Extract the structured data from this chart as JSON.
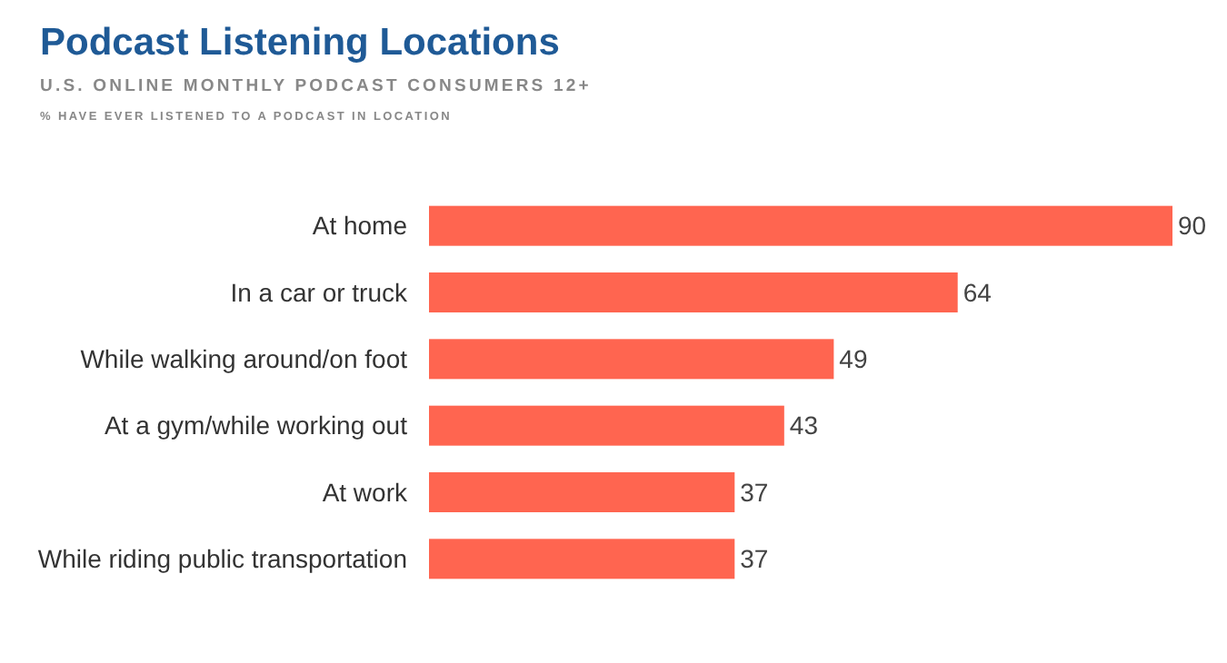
{
  "chart_data": {
    "type": "bar",
    "orientation": "horizontal",
    "title": "Podcast Listening Locations",
    "subtitle": "U.S. ONLINE MONTHLY PODCAST CONSUMERS 12+",
    "annotations": [
      "% HAVE EVER LISTENED TO A PODCAST IN LOCATION"
    ],
    "categories": [
      "At home",
      "In a car or truck",
      "While walking around/on foot",
      "At a gym/while working out",
      "At work",
      "While riding public transportation"
    ],
    "values": [
      90,
      64,
      49,
      43,
      37,
      37
    ],
    "color": "#ff6550",
    "data_labels": true
  }
}
